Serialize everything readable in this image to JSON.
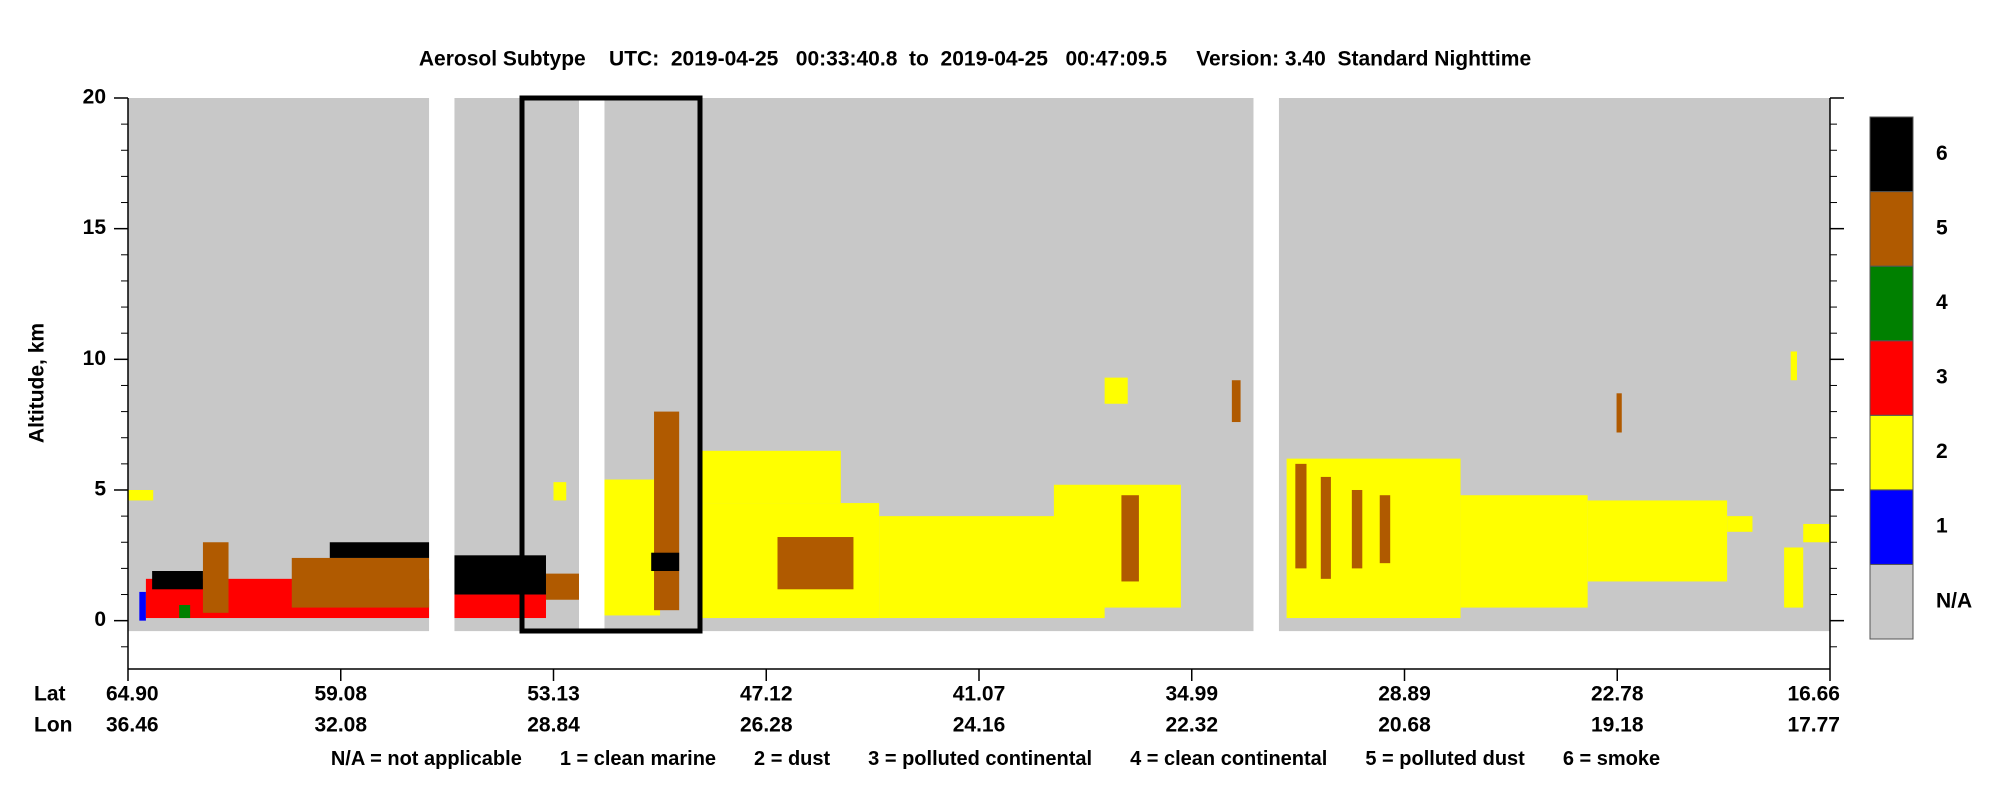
{
  "chart_data": {
    "type": "curtain",
    "title": "Aerosol Subtype    UTC:  2019-04-25   00:33:40.8  to  2019-04-25   00:47:09.5     Version: 3.40  Standard Nighttime",
    "ylabel": "Altitude, km",
    "ylim": [
      -1.85,
      20
    ],
    "yticks": [
      0,
      5,
      10,
      15,
      20
    ],
    "yminorticks": [
      -1,
      1,
      2,
      3,
      4,
      6,
      7,
      8,
      9,
      11,
      12,
      13,
      14,
      16,
      17,
      18,
      19
    ],
    "lat_title": "Lat",
    "lon_title": "Lon",
    "categories": [
      "64.90",
      "59.08",
      "53.13",
      "47.12",
      "41.07",
      "34.99",
      "28.89",
      "22.78",
      "16.66"
    ],
    "lon_labels": [
      "36.46",
      "32.08",
      "28.84",
      "26.28",
      "24.16",
      "22.32",
      "20.68",
      "19.18",
      "17.77"
    ],
    "colorbar": [
      {
        "label": "N/A",
        "color": "#c8c8c8"
      },
      {
        "label": "1",
        "color": "#0000ff"
      },
      {
        "label": "2",
        "color": "#ffff00"
      },
      {
        "label": "3",
        "color": "#ff0000"
      },
      {
        "label": "4",
        "color": "#008000"
      },
      {
        "label": "5",
        "color": "#b05a00"
      },
      {
        "label": "6",
        "color": "#000000"
      }
    ],
    "legend_text": [
      "N/A = not applicable",
      "1 = clean marine",
      "2 = dust",
      "3 = polluted continental",
      "4 = clean continental",
      "5 = polluted dust",
      "6 = smoke"
    ],
    "na_alt": [
      -0.4,
      20
    ],
    "coverage": [
      [
        64.9,
        56.61
      ],
      [
        55.9,
        52.41
      ],
      [
        51.69,
        33.22
      ],
      [
        32.49,
        16.66
      ]
    ],
    "features": [
      {
        "class": 1,
        "lat": [
          64.59,
          64.41
        ],
        "alt": [
          0,
          1.1
        ]
      },
      {
        "class": 2,
        "lat": [
          64.9,
          64.21
        ],
        "alt": [
          4.6,
          5.0
        ]
      },
      {
        "class": 3,
        "lat": [
          64.41,
          56.61
        ],
        "alt": [
          0.1,
          1.6
        ]
      },
      {
        "class": 4,
        "lat": [
          63.5,
          63.2
        ],
        "alt": [
          0.1,
          0.6
        ]
      },
      {
        "class": 6,
        "lat": [
          64.24,
          62.85
        ],
        "alt": [
          1.2,
          1.9
        ]
      },
      {
        "class": 5,
        "lat": [
          62.85,
          62.15
        ],
        "alt": [
          0.3,
          3.0
        ]
      },
      {
        "class": 5,
        "lat": [
          60.42,
          56.61
        ],
        "alt": [
          0.5,
          2.4
        ]
      },
      {
        "class": 6,
        "lat": [
          59.38,
          56.61
        ],
        "alt": [
          2.4,
          3.0
        ]
      },
      {
        "class": 3,
        "lat": [
          55.9,
          53.34
        ],
        "alt": [
          0.1,
          1.0
        ]
      },
      {
        "class": 6,
        "lat": [
          55.9,
          53.34
        ],
        "alt": [
          1.0,
          2.5
        ]
      },
      {
        "class": 5,
        "lat": [
          53.34,
          52.41
        ],
        "alt": [
          0.8,
          1.8
        ]
      },
      {
        "class": 2,
        "lat": [
          53.13,
          52.77
        ],
        "alt": [
          4.6,
          5.3
        ]
      },
      {
        "class": 2,
        "lat": [
          51.69,
          50.12
        ],
        "alt": [
          0.2,
          5.4
        ]
      },
      {
        "class": 5,
        "lat": [
          50.29,
          49.58
        ],
        "alt": [
          0.4,
          8.0
        ]
      },
      {
        "class": 6,
        "lat": [
          50.37,
          49.58
        ],
        "alt": [
          1.9,
          2.6
        ]
      },
      {
        "class": 2,
        "lat": [
          48.93,
          43.91
        ],
        "alt": [
          0.1,
          4.5
        ]
      },
      {
        "class": 2,
        "lat": [
          48.93,
          45.0
        ],
        "alt": [
          4.5,
          6.5
        ]
      },
      {
        "class": 5,
        "lat": [
          46.8,
          44.64
        ],
        "alt": [
          1.2,
          3.2
        ]
      },
      {
        "class": 2,
        "lat": [
          43.91,
          37.48
        ],
        "alt": [
          0.1,
          4.0
        ]
      },
      {
        "class": 2,
        "lat": [
          38.93,
          35.3
        ],
        "alt": [
          0.5,
          5.2
        ]
      },
      {
        "class": 5,
        "lat": [
          37.0,
          36.5
        ],
        "alt": [
          1.5,
          4.8
        ]
      },
      {
        "class": 2,
        "lat": [
          37.48,
          36.82
        ],
        "alt": [
          8.3,
          9.3
        ]
      },
      {
        "class": 5,
        "lat": [
          33.84,
          33.59
        ],
        "alt": [
          7.6,
          9.2
        ]
      },
      {
        "class": 2,
        "lat": [
          32.27,
          27.28
        ],
        "alt": [
          0.1,
          6.2
        ]
      },
      {
        "class": 2,
        "lat": [
          27.28,
          23.63
        ],
        "alt": [
          0.5,
          4.8
        ]
      },
      {
        "class": 2,
        "lat": [
          23.63,
          19.62
        ],
        "alt": [
          1.5,
          4.6
        ]
      },
      {
        "class": 5,
        "lat": [
          32.02,
          31.7
        ],
        "alt": [
          2.0,
          6.0
        ]
      },
      {
        "class": 5,
        "lat": [
          31.29,
          31.0
        ],
        "alt": [
          1.6,
          5.5
        ]
      },
      {
        "class": 5,
        "lat": [
          30.4,
          30.1
        ],
        "alt": [
          2.0,
          5.0
        ]
      },
      {
        "class": 5,
        "lat": [
          29.6,
          29.3
        ],
        "alt": [
          2.2,
          4.8
        ]
      },
      {
        "class": 5,
        "lat": [
          22.8,
          22.65
        ],
        "alt": [
          7.2,
          8.7
        ]
      },
      {
        "class": 2,
        "lat": [
          19.62,
          18.89
        ],
        "alt": [
          3.4,
          4.0
        ]
      },
      {
        "class": 2,
        "lat": [
          17.98,
          17.43
        ],
        "alt": [
          0.5,
          2.8
        ]
      },
      {
        "class": 2,
        "lat": [
          17.43,
          16.66
        ],
        "alt": [
          3.0,
          3.7
        ]
      },
      {
        "class": 2,
        "lat": [
          17.79,
          17.61
        ],
        "alt": [
          9.2,
          10.3
        ]
      }
    ]
  }
}
